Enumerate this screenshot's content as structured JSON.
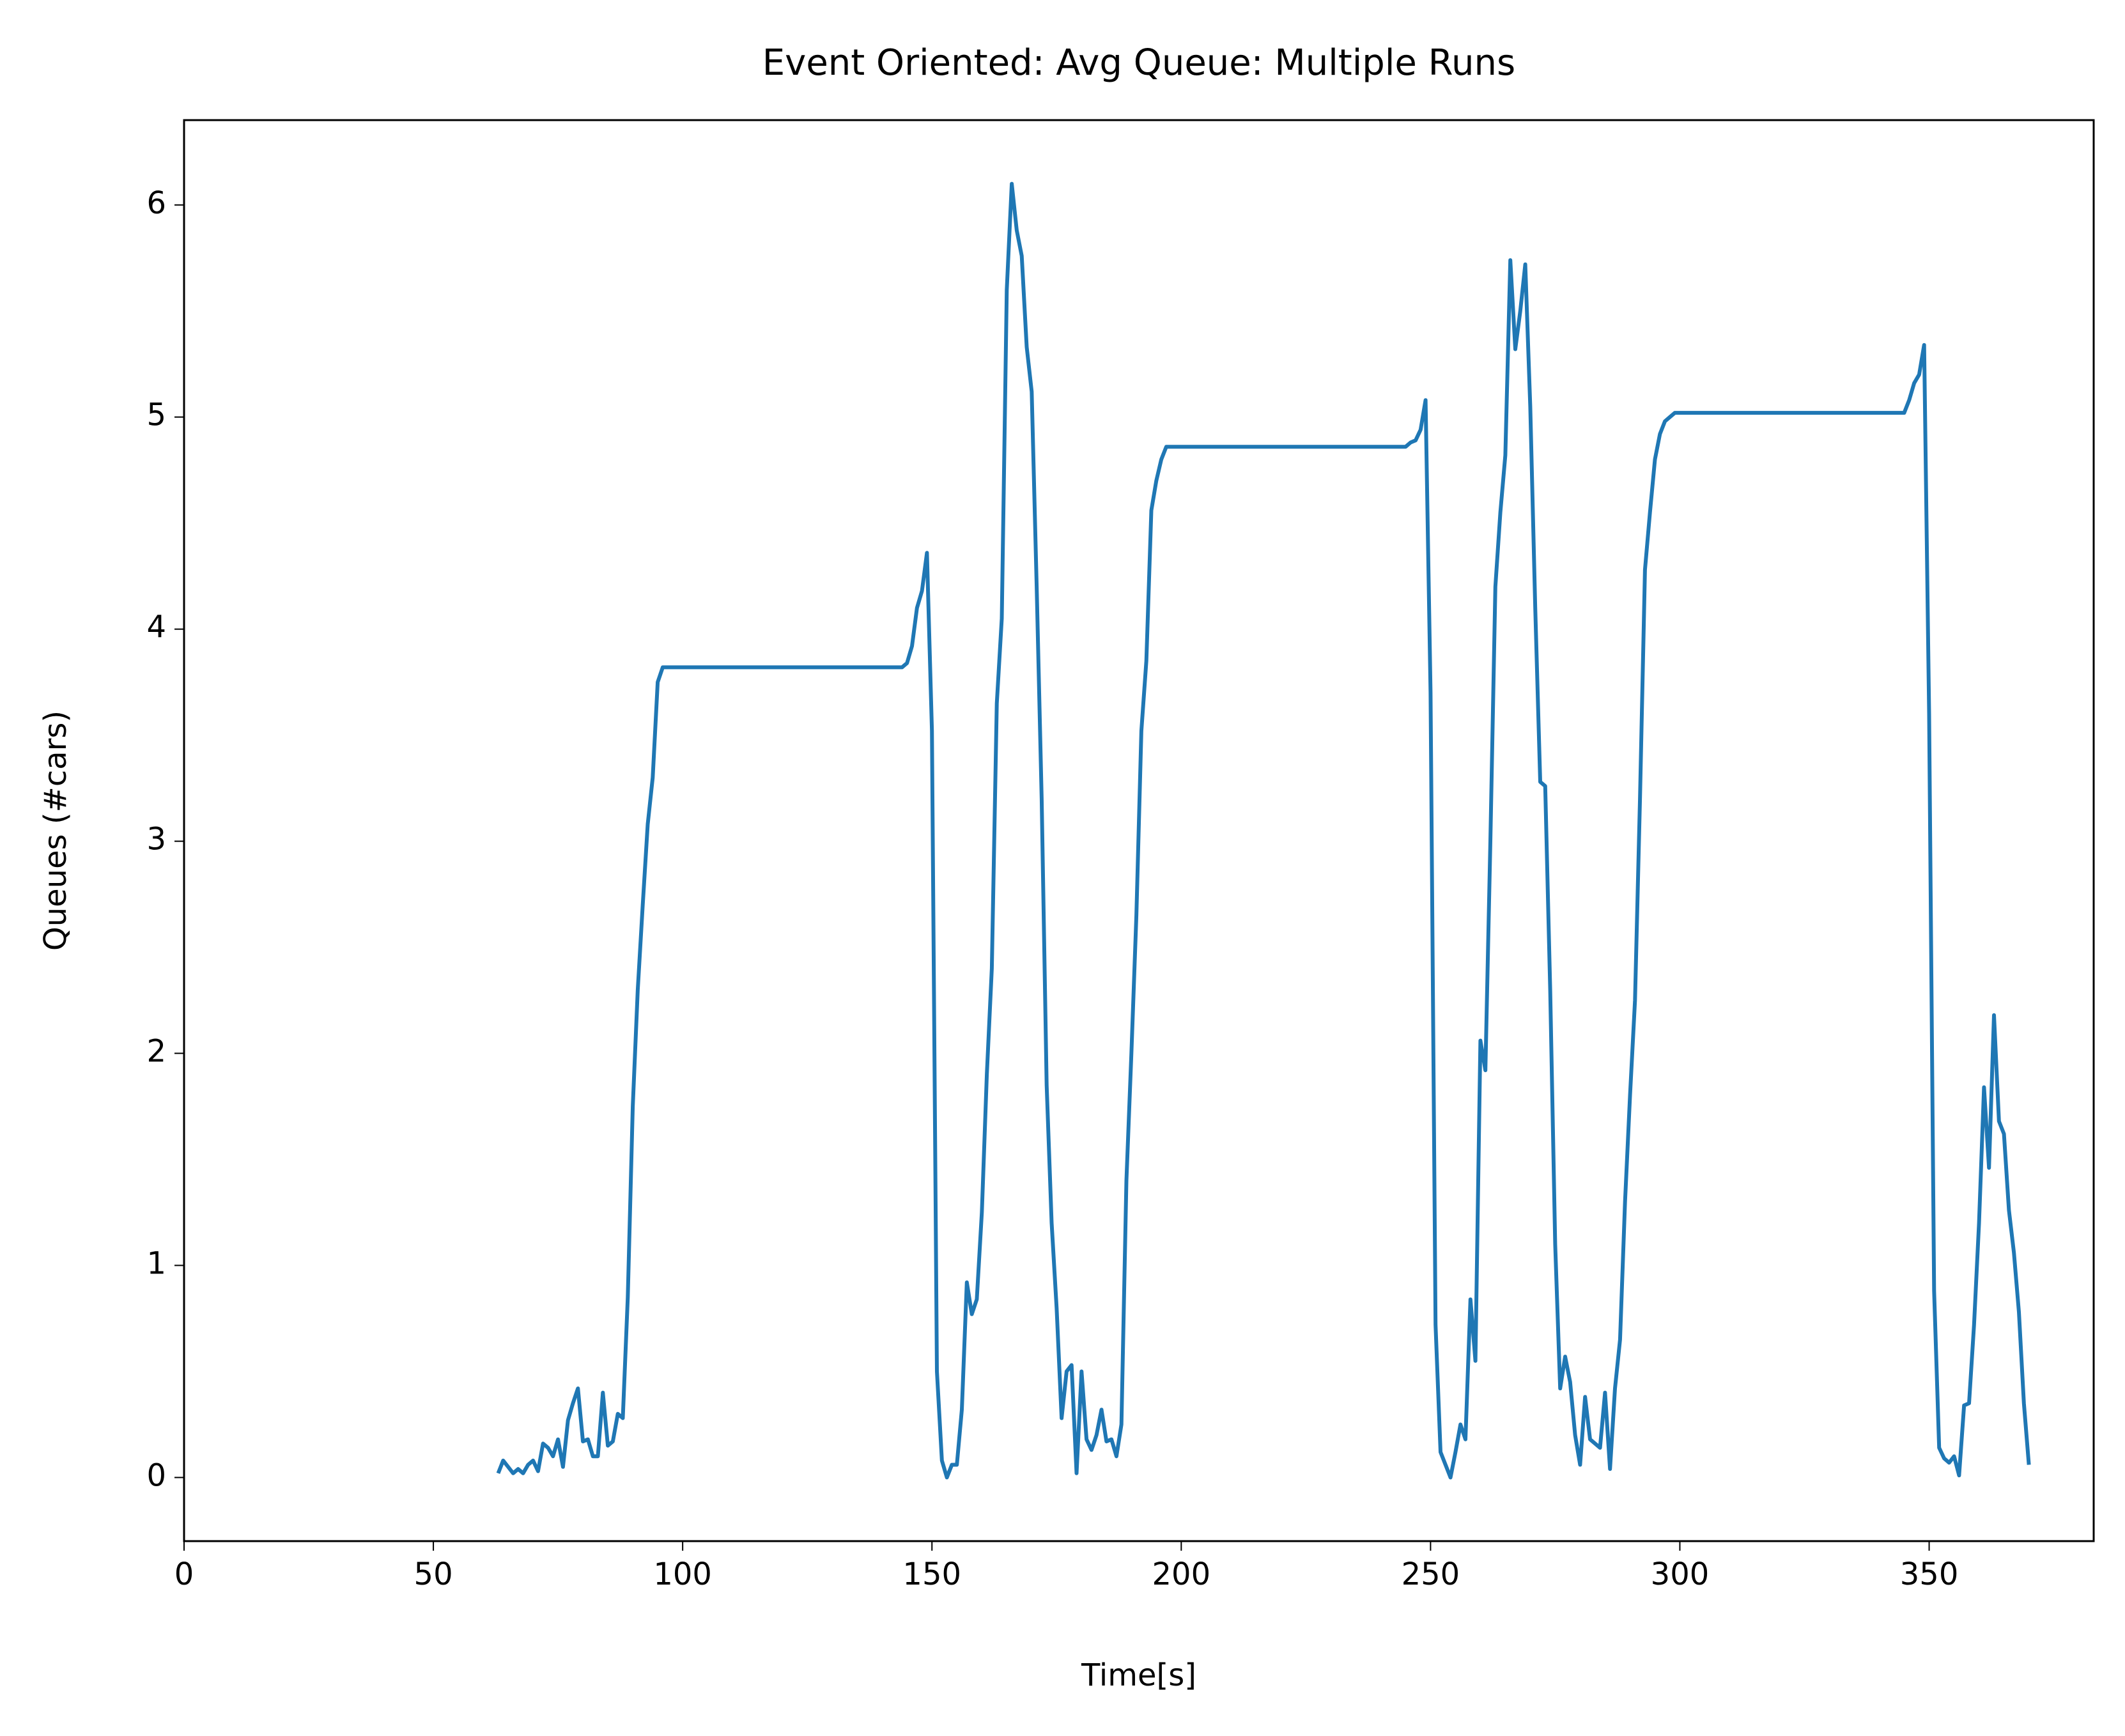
{
  "chart_data": {
    "type": "line",
    "title": "Event Oriented: Avg Queue: Multiple Runs",
    "xlabel": "Time[s]",
    "ylabel": "Queues (#cars)",
    "color": "#1f77b4",
    "x": [
      63,
      64,
      65,
      66,
      67,
      68,
      69,
      70,
      71,
      72,
      73,
      74,
      75,
      76,
      77,
      78,
      79,
      80,
      81,
      82,
      83,
      84,
      85,
      86,
      87,
      88,
      89,
      90,
      91,
      92,
      93,
      94,
      95,
      96,
      100,
      120,
      144,
      145,
      146,
      147,
      148,
      149,
      150,
      151,
      152,
      153,
      154,
      155,
      156,
      157,
      158,
      159,
      160,
      161,
      162,
      163,
      164,
      165,
      166,
      167,
      168,
      169,
      170,
      171,
      172,
      173,
      174,
      175,
      176,
      177,
      178,
      179,
      180,
      181,
      182,
      183,
      184,
      185,
      186,
      187,
      188,
      189,
      190,
      191,
      192,
      193,
      194,
      195,
      196,
      197,
      200,
      220,
      245,
      246,
      247,
      248,
      249,
      250,
      251,
      252,
      253,
      254,
      255,
      256,
      257,
      258,
      259,
      260,
      261,
      262,
      263,
      264,
      265,
      266,
      267,
      268,
      269,
      270,
      271,
      272,
      273,
      274,
      275,
      276,
      277,
      278,
      279,
      280,
      281,
      282,
      283,
      284,
      285,
      286,
      287,
      288,
      289,
      290,
      291,
      292,
      293,
      294,
      295,
      296,
      297,
      298,
      299,
      300,
      320,
      345,
      346,
      347,
      348,
      349,
      350,
      351,
      352,
      353,
      354,
      355,
      356,
      357,
      358,
      359,
      360,
      361,
      362,
      363,
      364,
      365,
      366,
      367,
      368,
      369,
      370
    ],
    "values": [
      0.02,
      0.08,
      0.05,
      0.02,
      0.04,
      0.02,
      0.06,
      0.08,
      0.03,
      0.16,
      0.14,
      0.1,
      0.18,
      0.05,
      0.27,
      0.35,
      0.42,
      0.17,
      0.18,
      0.1,
      0.1,
      0.4,
      0.15,
      0.17,
      0.3,
      0.28,
      0.85,
      1.75,
      2.3,
      2.7,
      3.08,
      3.3,
      3.75,
      3.82,
      3.82,
      3.82,
      3.82,
      3.84,
      3.92,
      4.1,
      4.18,
      4.36,
      3.52,
      0.5,
      0.08,
      0.0,
      0.06,
      0.06,
      0.32,
      0.92,
      0.77,
      0.84,
      1.25,
      1.9,
      2.4,
      3.65,
      4.05,
      5.6,
      6.1,
      5.88,
      5.76,
      5.33,
      5.12,
      4.2,
      3.2,
      1.85,
      1.2,
      0.8,
      0.28,
      0.5,
      0.53,
      0.02,
      0.5,
      0.18,
      0.13,
      0.2,
      0.32,
      0.17,
      0.18,
      0.1,
      0.25,
      1.4,
      2.0,
      2.65,
      3.52,
      3.85,
      4.56,
      4.7,
      4.8,
      4.86,
      4.86,
      4.86,
      4.86,
      4.88,
      4.89,
      4.94,
      5.08,
      3.7,
      0.72,
      0.12,
      0.06,
      0.0,
      0.12,
      0.25,
      0.18,
      0.84,
      0.55,
      2.06,
      1.92,
      3.0,
      4.2,
      4.55,
      4.82,
      5.74,
      5.32,
      5.5,
      5.72,
      5.05,
      4.1,
      3.28,
      3.26,
      2.3,
      1.1,
      0.42,
      0.57,
      0.45,
      0.2,
      0.06,
      0.38,
      0.18,
      0.16,
      0.14,
      0.4,
      0.04,
      0.42,
      0.65,
      1.3,
      1.8,
      2.25,
      3.2,
      4.28,
      4.55,
      4.8,
      4.92,
      4.98,
      5.0,
      5.02,
      5.02,
      5.02,
      5.02,
      5.08,
      5.16,
      5.2,
      5.34,
      3.6,
      0.88,
      0.14,
      0.09,
      0.07,
      0.1,
      0.01,
      0.34,
      0.35,
      0.72,
      1.2,
      1.84,
      1.46,
      2.18,
      1.68,
      1.62,
      1.26,
      1.06,
      0.78,
      0.35,
      0.06
    ],
    "xlim": [
      0,
      383
    ],
    "ylim": [
      -0.3,
      6.4
    ],
    "xticks": [
      0,
      50,
      100,
      150,
      200,
      250,
      300,
      350
    ],
    "yticks": [
      0,
      1,
      2,
      3,
      4,
      5,
      6
    ]
  }
}
